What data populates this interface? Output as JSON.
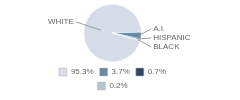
{
  "chart_data": {
    "type": "pie",
    "categories": [
      "WHITE",
      "A.I.",
      "HISPANIC",
      "BLACK"
    ],
    "values": [
      95.3,
      3.7,
      0.7,
      0.2
    ],
    "value_labels": [
      "95.3%",
      "3.7%",
      "0.7%",
      "0.2%"
    ],
    "colors": [
      "#d4dce8",
      "#6789a8",
      "#2b4a6b",
      "#b8c4d0"
    ],
    "legend": "bottom"
  }
}
